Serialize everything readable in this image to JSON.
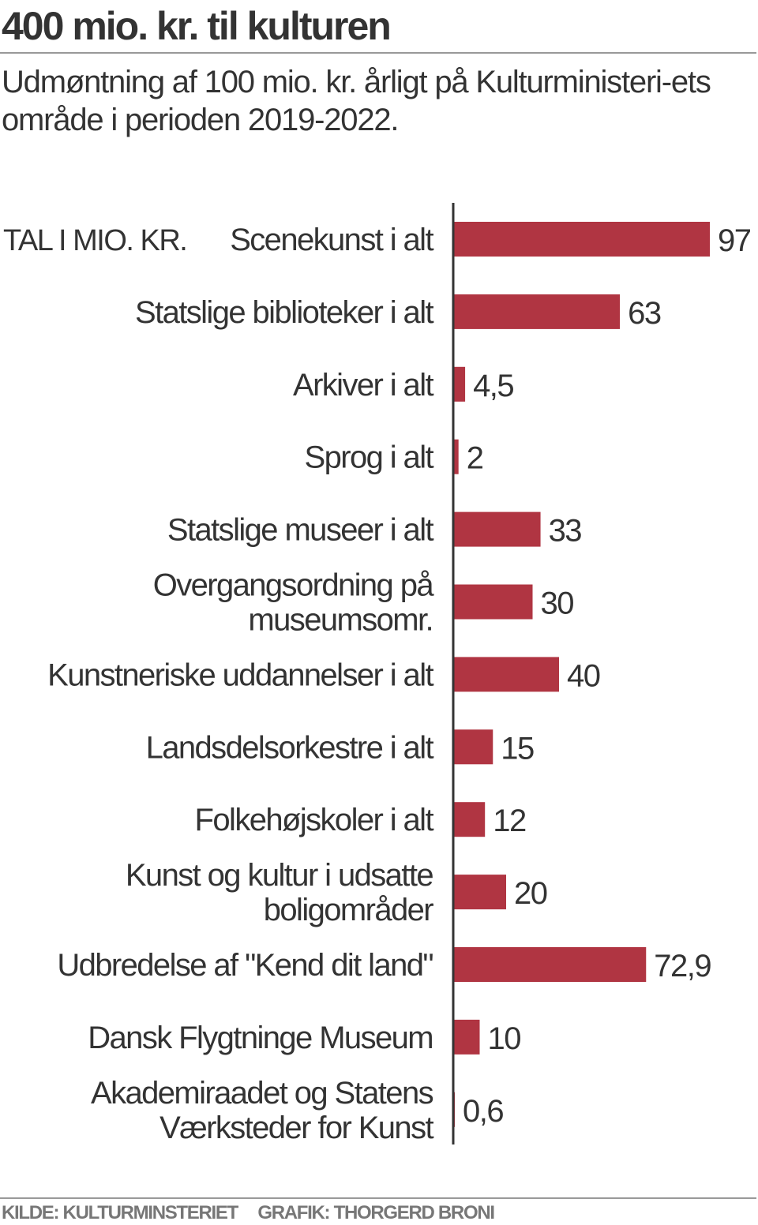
{
  "header": {
    "title": "400 mio. kr. til kulturen",
    "subtitle": "Udmøntning af 100 mio. kr. årligt på Kulturministeri-ets område i perioden 2019-2022."
  },
  "chart_data": {
    "type": "bar",
    "orientation": "horizontal",
    "title": "400 mio. kr. til kulturen",
    "unit_label": "TAL I MIO. KR.",
    "categories": [
      [
        "Scenekunst i alt"
      ],
      [
        "Statslige biblioteker i alt"
      ],
      [
        "Arkiver i alt"
      ],
      [
        "Sprog i alt"
      ],
      [
        "Statslige museer i alt"
      ],
      [
        "Overgangsordning på",
        "museumsomr."
      ],
      [
        "Kunstneriske uddannelser i alt"
      ],
      [
        "Landsdelsorkestre i alt"
      ],
      [
        "Folkehøjskoler i alt"
      ],
      [
        "Kunst og kultur i udsatte",
        "boligområder"
      ],
      [
        "Udbredelse af \"Kend dit land\""
      ],
      [
        "Dansk Flygtninge Museum"
      ],
      [
        "Akademiraadet og Statens",
        "Værksteder for Kunst"
      ]
    ],
    "values": [
      97,
      63,
      4.5,
      2,
      33,
      30,
      40,
      15,
      12,
      20,
      72.9,
      10,
      0.6
    ],
    "value_labels": [
      "97",
      "63",
      "4,5",
      "2",
      "33",
      "30",
      "40",
      "15",
      "12",
      "20",
      "72,9",
      "10",
      "0,6"
    ],
    "xlim": [
      0,
      100
    ],
    "bar_color": "#b03542",
    "grid": false
  },
  "footer": {
    "source": "KILDE: KULTURMINSTERIET",
    "credit": "GRAFIK: THORGERD BRONI"
  }
}
